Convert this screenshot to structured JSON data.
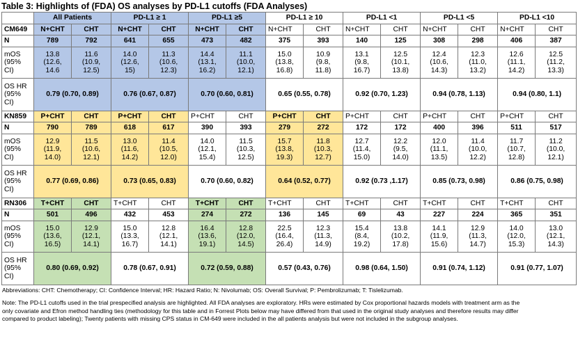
{
  "title": "Table 3: Highlights of (FDA) OS analyses by PD-L1 cutoffs (FDA Analyses)",
  "header": {
    "first": "",
    "groups": [
      "All Patients",
      "PD-L1 ≥ 1",
      "PD-L1 ≥5",
      "PD-L1 ≥ 10",
      "PD-L1 <1",
      "PD-L1 <5",
      "PD-L1 <10"
    ]
  },
  "studies": [
    {
      "name": "CM649",
      "arms": [
        "N+CHT",
        "CHT",
        "N+CHT",
        "CHT",
        "N+CHT",
        "CHT",
        "N+CHT",
        "CHT",
        "N+CHT",
        "CHT",
        "N+CHT",
        "CHT",
        "N+CHT",
        "CHT"
      ],
      "n_label": "N",
      "n": [
        "789",
        "792",
        "641",
        "655",
        "473",
        "482",
        "375",
        "393",
        "140",
        "125",
        "308",
        "298",
        "406",
        "387"
      ],
      "mos_label": "mOS\n(95%\nCI)",
      "mos": [
        "13.8\n(12.6,\n14.6",
        "11.6\n(10.9,\n12.5)",
        "14.0\n(12.6,\n15)",
        "11.3\n(10.6,\n12.3)",
        "14.4\n(13.1,\n16.2)",
        "11.1\n(10.0,\n12.1)",
        "15.0\n(13.8,\n16.8)",
        "10.9\n(9.8,\n11.8)",
        "13.1\n(9.8,\n16.7)",
        "12.5\n(10.1,\n13.8)",
        "12.4\n(10.6,\n14.3)",
        "12.3\n(11.0,\n13.2)",
        "12.6\n(11.1,\n14.2)",
        "12.5\n(11.2,\n13.3)"
      ],
      "hr_label": "OS HR\n(95%\nCI)",
      "hr": [
        "0.79 (0.70, 0.89)",
        "0.76 (0.67, 0.87)",
        "0.70 (0.60, 0.81)",
        "0.65 (0.55, 0.78)",
        "0.92 (0.70, 1.23)",
        "0.94 (0.78, 1.13)",
        "0.94 (0.80, 1.1)"
      ]
    },
    {
      "name": "KN859",
      "arms": [
        "P+CHT",
        "CHT",
        "P+CHT",
        "CHT",
        "P+CHT",
        "CHT",
        "P+CHT",
        "CHT",
        "P+CHT",
        "CHT",
        "P+CHT",
        "CHT",
        "P+CHT",
        "CHT"
      ],
      "n_label": "N",
      "n": [
        "790",
        "789",
        "618",
        "617",
        "390",
        "393",
        "279",
        "272",
        "172",
        "172",
        "400",
        "396",
        "511",
        "517"
      ],
      "mos_label": "mOS\n(95%\nCI)",
      "mos": [
        "12.9\n(11.9,\n14.0)",
        "11.5\n(10.6,\n12.1)",
        "13.0\n(11.6,\n14.2)",
        "11.4\n(10.5,\n12.0)",
        "14.0\n(12.1,\n15.4)",
        "11.5\n(10.3,\n12.5)",
        "15.7\n(13.8,\n19.3)",
        "11.8\n(10.3,\n12.7)",
        "12.7\n(11.4,\n15.0)",
        "12.2\n(9.5,\n14.0)",
        "12.0\n(11.1,\n13.5)",
        "11.4\n(10.0,\n12.2)",
        "11.7\n(10.7,\n12.8)",
        "11.2\n(10.0,\n12.1)"
      ],
      "hr_label": "OS HR\n(95%\nCI)",
      "hr": [
        "0.77 (0.69, 0.86)",
        "0.73 (0.65, 0.83)",
        "0.70 (0.60, 0.82)",
        "0.64 (0.52, 0.77)",
        "0.92 (0.73 ,1.17)",
        "0.85 (0.73, 0.98)",
        "0.86 (0.75, 0.98)"
      ]
    },
    {
      "name": "RN306",
      "arms": [
        "T+CHT",
        "CHT",
        "T+CHT",
        "CHT",
        "T+CHT",
        "CHT",
        "T+CHT",
        "CHT",
        "T+CHT",
        "CHT",
        "T+CHT",
        "CHT",
        "T+CHT",
        "CHT"
      ],
      "n_label": "N",
      "n": [
        "501",
        "496",
        "432",
        "453",
        "274",
        "272",
        "136",
        "145",
        "69",
        "43",
        "227",
        "224",
        "365",
        "351"
      ],
      "mos_label": "mOS\n(95%\nCI)",
      "mos": [
        "15.0\n(13.6,\n16.5)",
        "12.9\n(12.1,\n14.1)",
        "15.0\n(13.3,\n16.7)",
        "12.8\n(12.1,\n14.1)",
        "16.4\n(13.6,\n19.1)",
        "12.8\n(12.0,\n14.5)",
        "22.5\n(16.4,\n26.4)",
        "12.3\n(11.3,\n14.9)",
        "15.4\n(8.4,\n19.2)",
        "13.8\n(10.2,\n17.8)",
        "14.1\n(11.9,\n15.6)",
        "12.9\n(11.3,\n14.7)",
        "14.0\n(12.0,\n15.3)",
        "13.0\n(12.1,\n14.3)"
      ],
      "hr_label": "OS HR\n(95%\nCI)",
      "hr": [
        "0.80 (0.69, 0.92)",
        "0.78 (0.67, 0.91)",
        "0.72 (0.59, 0.88)",
        "0.57 (0.43, 0.76)",
        "0.98 (0.64, 1.50)",
        "0.91 (0.74, 1.12)",
        "0.91 (0.77, 1.07)"
      ]
    }
  ],
  "abbreviations": "Abbreviations: CHT: Chemotherapy; CI: Confidence Interval; HR: Hazard Ratio; N: Nivolumab; OS: Overall Survival; P: Pembrolizumab; T: Tislelizumab.",
  "note_lines": [
    "Note: The PD-L1 cutoffs used in the trial prespecified analysis are highlighted. All FDA analyses are exploratory. HRs were estimated by Cox proportional hazards models with treatment arm as the",
    "only covariate and Efron method handling ties (methodology for this table and in Forrest Plots below may have differed from that used in the original study analyses and therefore results may differ",
    "compared to product labeling); Twenty patients with missing CPS status in CM-649 were included in the all patients analysis but were not included in the subgroup analyses."
  ],
  "highlight_colors": {
    "CM649": "#b4c7e7",
    "KN859": "#ffe699",
    "RN306": "#c5e0b4"
  },
  "highlights": {
    "CM649": [
      0,
      1,
      2
    ],
    "KN859": [
      0,
      1,
      3
    ],
    "RN306": [
      0,
      2
    ]
  }
}
